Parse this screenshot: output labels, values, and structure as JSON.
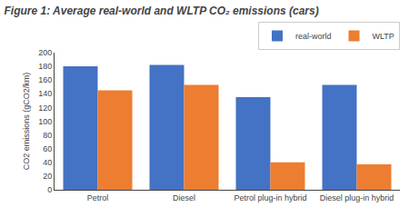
{
  "chart_data": {
    "type": "bar",
    "title": "Figure 1: Average real-world and WLTP CO₂ emissions (cars)",
    "categories": [
      "Petrol",
      "Diesel",
      "Petrol plug-in hybrid",
      "Diesel plug-in hybrid"
    ],
    "series": [
      {
        "name": "real-world",
        "color": "#4472C4",
        "values": [
          180,
          182,
          135,
          153
        ]
      },
      {
        "name": "WLTP",
        "color": "#ED7D31",
        "values": [
          145,
          153,
          40,
          37
        ]
      }
    ],
    "ylabel": "CO2 emissions (gCO2/km)",
    "ylim": [
      0,
      200
    ],
    "yticks": [
      0,
      20,
      40,
      60,
      80,
      100,
      120,
      140,
      160,
      180,
      200
    ],
    "legend": "upper right",
    "grid": false
  }
}
